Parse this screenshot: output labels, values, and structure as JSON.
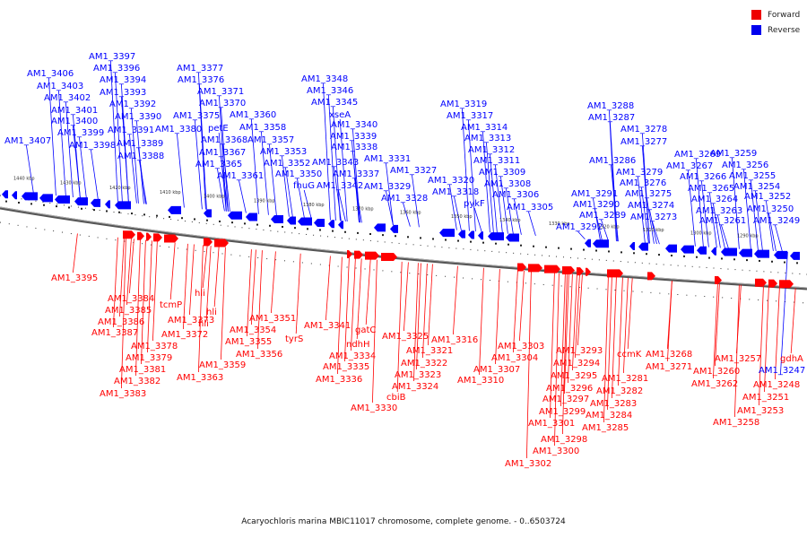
{
  "title": "Acaryochloris marina MBIC11017 chromosome, complete genome. - 0..6503724",
  "colors": {
    "forward": "#ff0000",
    "reverse": "#0000ff"
  },
  "legend": [
    {
      "label": "Forward",
      "color": "#ee0000"
    },
    {
      "label": "Reverse",
      "color": "#0000ee"
    }
  ],
  "scale_ticks": [
    "1440 kbp",
    "1430 kbp",
    "1420 kbp",
    "1410 kbp",
    "1400 kbp",
    "1390 kbp",
    "1380 kbp",
    "1370 kbp",
    "1360 kbp",
    "1350 kbp",
    "1340 kbp",
    "1330 kbp",
    "1320 kbp",
    "1310 kbp",
    "1300 kbp",
    "1290 kbp"
  ],
  "reverse_labels": [
    "AM1_3407",
    "AM1_3406",
    "AM1_3403",
    "AM1_3402",
    "AM1_3401",
    "AM1_3400",
    "AM1_3399",
    "AM1_3398",
    "AM1_3397",
    "AM1_3396",
    "AM1_3394",
    "AM1_3393",
    "AM1_3392",
    "AM1_3391",
    "AM1_3390",
    "AM1_3389",
    "AM1_3388",
    "AM1_3380",
    "AM1_3377",
    "AM1_3376",
    "AM1_3375",
    "AM1_3371",
    "AM1_3370",
    "petE",
    "AM1_3368",
    "AM1_3367",
    "AM1_3365",
    "AM1_3361",
    "AM1_3360",
    "AM1_3358",
    "AM1_3357",
    "AM1_3353",
    "AM1_3352",
    "AM1_3350",
    "fhuG",
    "AM1_3348",
    "AM1_3346",
    "AM1_3345",
    "xseA",
    "AM1_3340",
    "AM1_3339",
    "AM1_3338",
    "AM1_3343",
    "AM1_3337",
    "AM1_3342",
    "AM1_3331",
    "AM1_3327",
    "AM1_3329",
    "AM1_3328",
    "AM1_3320",
    "AM1_3319",
    "AM1_3318",
    "AM1_3317",
    "AM1_3314",
    "AM1_3313",
    "AM1_3312",
    "AM1_3311",
    "AM1_3309",
    "AM1_3308",
    "pykF",
    "AM1_3306",
    "AM1_3305",
    "AM1_3292",
    "AM1_3291",
    "AM1_3290",
    "AM1_3289",
    "AM1_3288",
    "AM1_3287",
    "AM1_3286",
    "AM1_3278",
    "AM1_3277",
    "AM1_3279",
    "AM1_3276",
    "AM1_3275",
    "AM1_3274",
    "AM1_3273",
    "AM1_3269",
    "AM1_3267",
    "AM1_3266",
    "AM1_3265",
    "AM1_3264",
    "AM1_3263",
    "AM1_3261",
    "AM1_3259",
    "AM1_3256",
    "AM1_3255",
    "AM1_3254",
    "AM1_3252",
    "AM1_3250",
    "AM1_3249",
    "AM1_3247"
  ],
  "forward_labels": [
    "AM1_3395",
    "AM1_3384",
    "AM1_3385",
    "AM1_3386",
    "AM1_3387",
    "AM1_3378",
    "AM1_3379",
    "AM1_3381",
    "AM1_3382",
    "AM1_3383",
    "tcmP",
    "AM1_3373",
    "AM1_3372",
    "hli",
    "hli",
    "hli",
    "AM1_3363",
    "AM1_3359",
    "AM1_3356",
    "AM1_3355",
    "AM1_3354",
    "AM1_3351",
    "tyrS",
    "AM1_3341",
    "gatC",
    "ndhH",
    "AM1_3334",
    "AM1_3335",
    "AM1_3336",
    "AM1_3330",
    "cbiB",
    "AM1_3325",
    "AM1_3324",
    "AM1_3323",
    "AM1_3322",
    "AM1_3321",
    "AM1_3316",
    "AM1_3310",
    "AM1_3307",
    "AM1_3304",
    "AM1_3303",
    "AM1_3302",
    "AM1_3301",
    "AM1_3300",
    "AM1_3299",
    "AM1_3298",
    "AM1_3297",
    "AM1_3296",
    "AM1_3295",
    "AM1_3294",
    "AM1_3293",
    "AM1_3285",
    "AM1_3284",
    "AM1_3283",
    "AM1_3282",
    "AM1_3281",
    "ccmK",
    "AM1_3271",
    "AM1_3268",
    "AM1_3262",
    "AM1_3260",
    "AM1_3258",
    "AM1_3257",
    "AM1_3253",
    "AM1_3251",
    "AM1_3248",
    "gdhA"
  ]
}
